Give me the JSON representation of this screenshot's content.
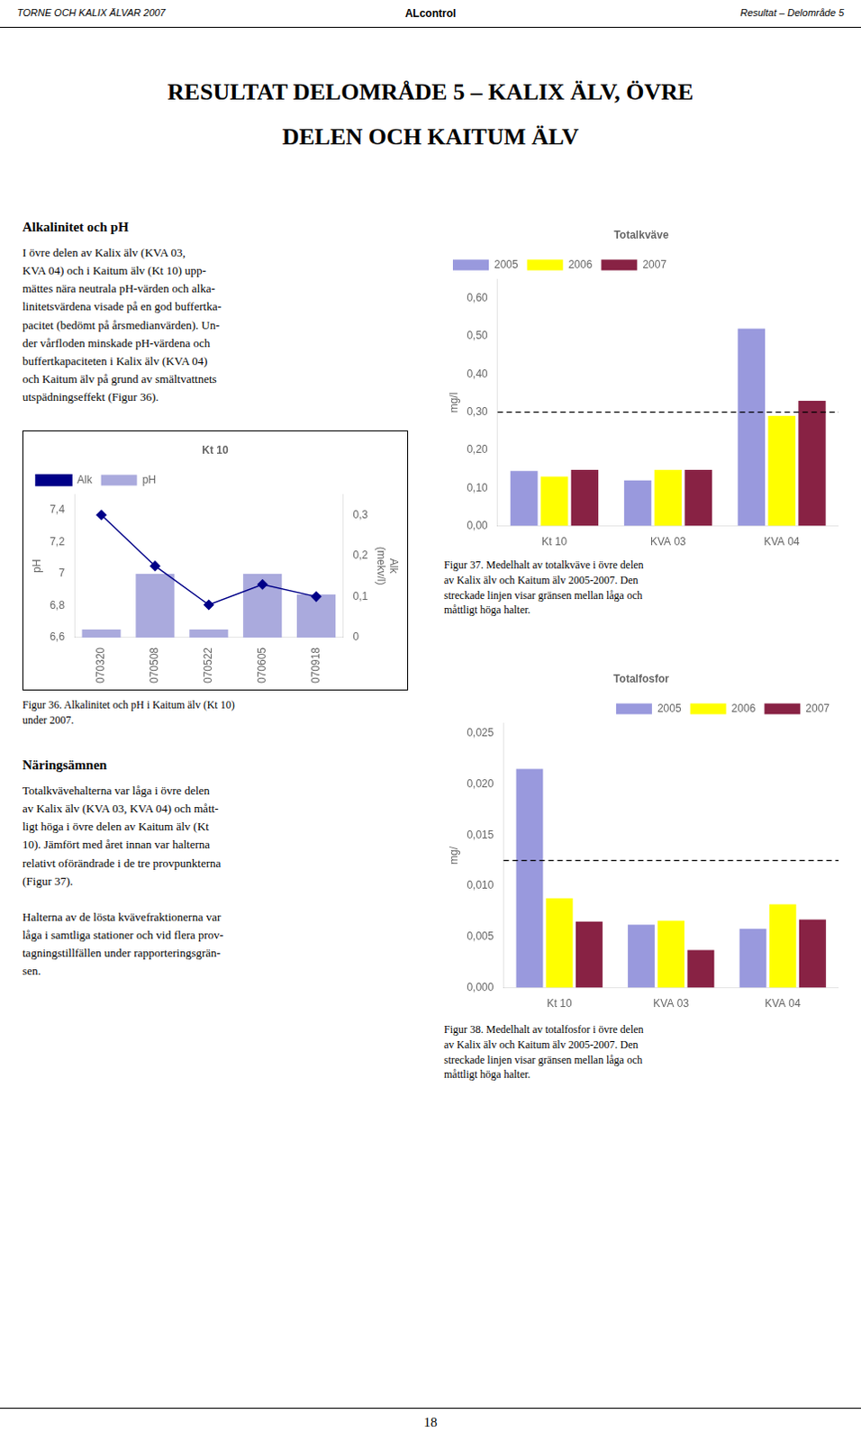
{
  "page": {
    "header_left": "TORNE OCH KALIX ÄLVAR 2007",
    "header_center": "ALcontrol",
    "header_right": "Resultat – Delområde 5",
    "title_lines": [
      "RESULTAT DELOMRÅDE 5 – KALIX ÄLV, ÖVRE",
      "DELEN OCH KAITUM ÄLV"
    ],
    "sections": [
      {
        "title": "Alkalinitet och pH",
        "body": "I övre delen av Kalix älv (KVA 03,\nKVA 04) och i Kaitum älv (Kt 10) upp-\nmättes nära neutrala pH-värden och alka-\nlinitetsvärdena visade på en god buffertka-\npacitet (bedömt på årsmedianvärden). Un-\nder vårfloden minskade pH-värdena och\nbuffertkapaciteten i Kalix älv (KVA 04)\noch Kaitum älv på grund av smältvattnets\nutspädningseffekt (Figur 36)."
      },
      {
        "title": "Näringsämnen",
        "body": "Totalkvävehalterna var låga i övre delen\nav Kalix älv (KVA 03, KVA 04) och mått-\nligt höga i övre delen av Kaitum älv (Kt\n10). Jämfört med året innan var halterna\nrelativt oförändrade i de tre provpunkterna\n(Figur 37).\n\nHalterna av de lösta kvävefraktionerna var\nlåga i samtliga stationer och vid flera prov-\ntagningstillfällen under rapporteringsgrän-\nsen."
      }
    ],
    "footer": "18"
  },
  "chart_data": [
    {
      "type": "bar",
      "title": "Kt 10",
      "caption": "Figur 36. Alkalinitet och pH i Kaitum älv (Kt 10)\nunder 2007.",
      "categories": [
        "070320",
        "070508",
        "070522",
        "070605",
        "070918"
      ],
      "ylabel": "pH",
      "y2label": "Alk\n(mekv/l)",
      "ylim": [
        6.6,
        7.5
      ],
      "yticks": [
        {
          "value": 6.6,
          "label": "6,6"
        },
        {
          "value": 6.8,
          "label": "6,8"
        },
        7,
        {
          "value": 7.2,
          "label": "7,2"
        },
        {
          "value": 7.4,
          "label": "7,4"
        }
      ],
      "y2lim": [
        0,
        0.35
      ],
      "y2ticks": [
        0,
        {
          "value": 0.1,
          "label": "0,1"
        },
        {
          "value": 0.2,
          "label": "0,2"
        },
        {
          "value": 0.3,
          "label": "0,3"
        }
      ],
      "grid": false,
      "legend": "upper left",
      "series": [
        {
          "name": "pH",
          "type": "bar",
          "color": "#aaaadd",
          "values": [
            6.65,
            7.0,
            6.65,
            7.0,
            6.87
          ]
        },
        {
          "name": "Alk",
          "type": "line",
          "color": "#000088",
          "marker": "diamond",
          "axis": "y2",
          "values": [
            0.3,
            0.175,
            0.08,
            0.13,
            0.1
          ]
        }
      ]
    },
    {
      "type": "bar",
      "title": "Totalkväve",
      "ylabel": "mg/l",
      "caption": "Figur 37. Medelhalt av totalkväve i övre delen\nav Kalix älv och Kaitum älv 2005-2007. Den\nstreckade linjen visar gränsen mellan låga och\nmåttligt höga halter.",
      "categories": [
        "Kt 10",
        "KVA 03",
        "KVA 04"
      ],
      "ylim": [
        0,
        0.65
      ],
      "yticks": [
        {
          "value": 0.0,
          "label": "0,00"
        },
        {
          "value": 0.1,
          "label": "0,10"
        },
        {
          "value": 0.2,
          "label": "0,20"
        },
        {
          "value": 0.3,
          "label": "0,30"
        },
        {
          "value": 0.4,
          "label": "0,40"
        },
        {
          "value": 0.5,
          "label": "0,50"
        },
        {
          "value": 0.6,
          "label": "0,60"
        }
      ],
      "hline": {
        "value": 0.3,
        "line_style": "dashed",
        "color": "#000000"
      },
      "grid": false,
      "legend": "upper left",
      "series": [
        {
          "name": "2005",
          "color": "#9999dd",
          "values": [
            0.145,
            0.12,
            0.52
          ]
        },
        {
          "name": "2006",
          "color": "#ffff00",
          "values": [
            0.13,
            0.148,
            0.29
          ]
        },
        {
          "name": "2007",
          "color": "#882244",
          "values": [
            0.148,
            0.148,
            0.33
          ]
        }
      ]
    },
    {
      "type": "bar",
      "title": "Totalfosfor",
      "ylabel": "mg/",
      "caption": "Figur 38. Medelhalt av totalfosfor i övre delen\nav Kalix älv och Kaitum älv 2005-2007. Den\nstreckade linjen visar gränsen mellan låga och\nmåttligt höga halter.",
      "categories": [
        "Kt 10",
        "KVA 03",
        "KVA 04"
      ],
      "ylim": [
        0,
        0.026
      ],
      "yticks": [
        {
          "value": 0.0,
          "label": "0,000"
        },
        {
          "value": 0.005,
          "label": "0,005"
        },
        {
          "value": 0.01,
          "label": "0,010"
        },
        {
          "value": 0.015,
          "label": "0,015"
        },
        {
          "value": 0.02,
          "label": "0,020"
        },
        {
          "value": 0.025,
          "label": "0,025"
        }
      ],
      "hline": {
        "value": 0.0125,
        "line_style": "dashed",
        "color": "#000000"
      },
      "grid": false,
      "legend": "upper right",
      "series": [
        {
          "name": "2005",
          "color": "#9999dd",
          "values": [
            0.0215,
            0.0062,
            0.0058
          ]
        },
        {
          "name": "2006",
          "color": "#ffff00",
          "values": [
            0.0088,
            0.0066,
            0.0082
          ]
        },
        {
          "name": "2007",
          "color": "#882244",
          "values": [
            0.0065,
            0.0037,
            0.0067
          ]
        }
      ]
    }
  ]
}
